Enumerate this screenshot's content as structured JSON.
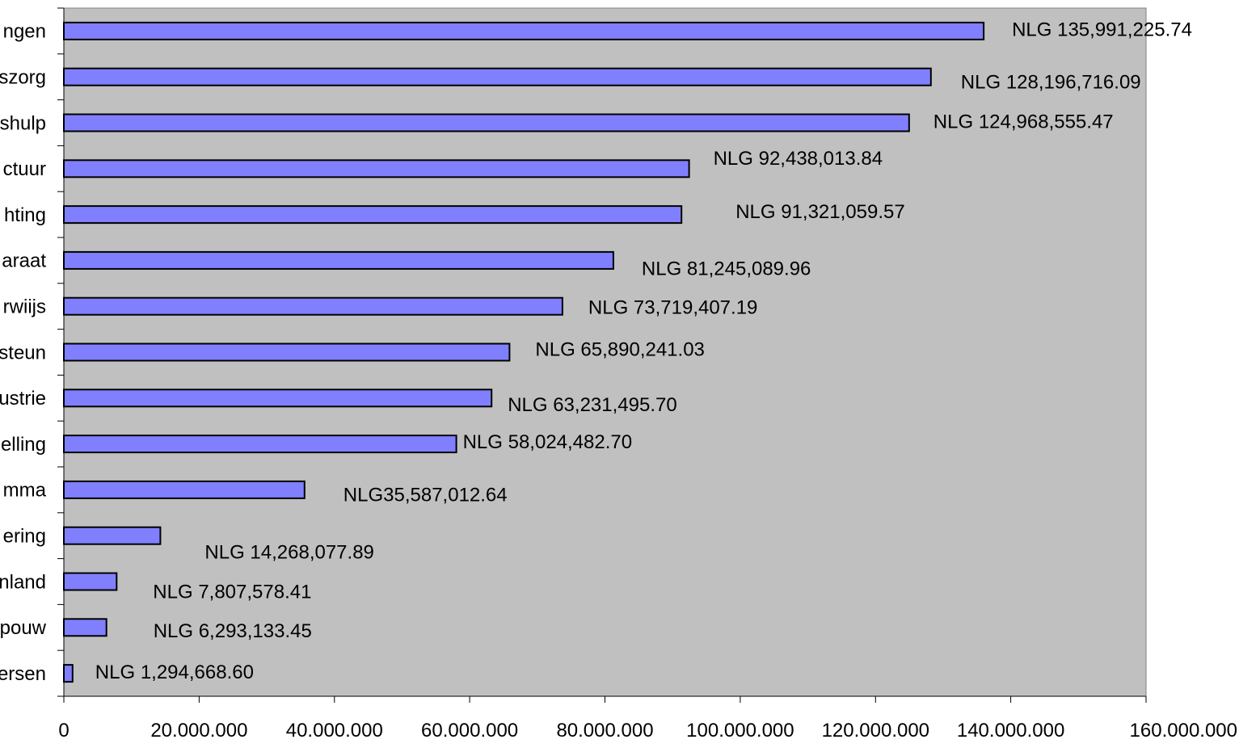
{
  "chart_data": {
    "type": "bar",
    "orientation": "horizontal",
    "title": "",
    "xlabel": "",
    "ylabel": "",
    "xlim": [
      0,
      160000000
    ],
    "x_ticks": [
      0,
      20000000,
      40000000,
      60000000,
      80000000,
      100000000,
      120000000,
      140000000,
      160000000
    ],
    "x_tick_labels": [
      "0",
      "20.000.000",
      "40.000.000",
      "60.000.000",
      "80.000.000",
      "100.000.000",
      "120.000.000",
      "140.000.000",
      "160.000.000"
    ],
    "categories": [
      "ngen",
      "szorg",
      "shulp",
      "ctuur",
      "hting",
      "araat",
      "rwiijs",
      "steun",
      "ustrie",
      "elling",
      "mma",
      "ering",
      "nland",
      "pouw",
      "ersen"
    ],
    "values": [
      135991225.74,
      128196716.09,
      124968555.47,
      92438013.84,
      91321059.57,
      81245089.96,
      73719407.19,
      65890241.03,
      63231495.7,
      58024482.7,
      35587012.64,
      14268077.89,
      7807578.41,
      6293133.45,
      1294668.6
    ],
    "data_labels": [
      "NLG 135,991,225.74",
      "NLG 128,196,716.09",
      "NLG 124,968,555.47",
      "NLG 92,438,013.84",
      "NLG 91,321,059.57",
      "NLG 81,245,089.96",
      "NLG 73,719,407.19",
      "NLG 65,890,241.03",
      "NLG 63,231,495.70",
      "NLG 58,024,482.70",
      "NLG35,587,012.64",
      "NLG 14,268,077.89",
      "NLG 7,807,578.41",
      "NLG 6,293,133.45",
      "NLG 1,294,668.60"
    ],
    "grid": false,
    "legend": "none",
    "colors": {
      "bar_fill": "#8080ff",
      "bar_stroke": "#000000",
      "plot_background": "#c0c0c0",
      "page_background": "#ffffff"
    }
  }
}
